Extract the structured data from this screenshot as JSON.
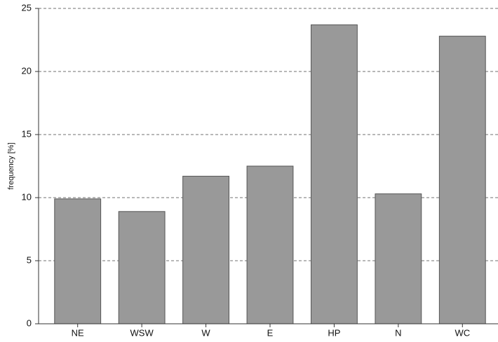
{
  "chart_data": {
    "type": "bar",
    "ylabel": "frequency [%]",
    "categories": [
      "NE",
      "WSW",
      "W",
      "E",
      "HP",
      "N",
      "WC"
    ],
    "values": [
      9.9,
      8.9,
      11.7,
      12.5,
      23.7,
      10.3,
      22.8
    ],
    "color": "#999999",
    "ylim": [
      0,
      25
    ],
    "yticks": [
      0,
      5,
      10,
      15,
      20,
      25
    ],
    "grid": true
  }
}
